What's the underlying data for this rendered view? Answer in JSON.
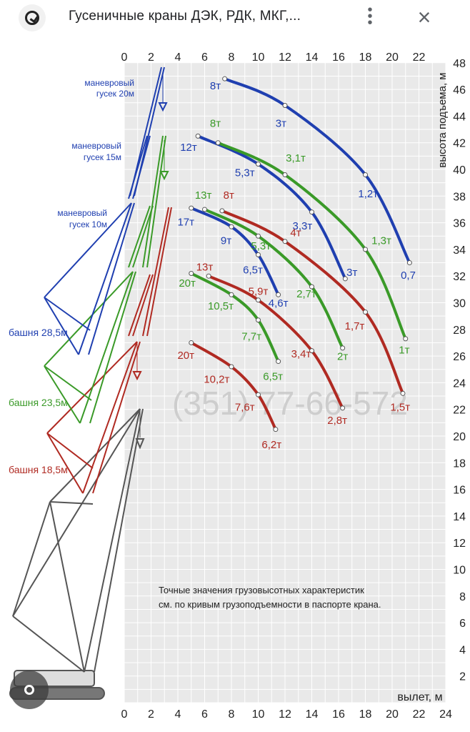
{
  "header": {
    "title": "Гусеничные краны ДЭК, РДК, МКГ,...",
    "logo_icon": "google-lens-logo-icon",
    "more_icon": "more-vert-icon",
    "close_icon": "close-icon"
  },
  "chart_data": {
    "type": "line",
    "title": "",
    "xlabel": "вылет, м",
    "ylabel": "высота подъема, м",
    "xlim": [
      0,
      24
    ],
    "ylim": [
      0,
      48
    ],
    "x_ticks": [
      0,
      2,
      4,
      6,
      8,
      10,
      12,
      14,
      16,
      18,
      20,
      22,
      24
    ],
    "top_x_ticks": [
      0,
      2,
      4,
      6,
      8,
      10,
      12,
      14,
      16,
      18,
      20,
      22
    ],
    "y_ticks": [
      2,
      4,
      6,
      8,
      10,
      12,
      14,
      16,
      18,
      20,
      22,
      24,
      26,
      28,
      30,
      32,
      34,
      36,
      38,
      40,
      42,
      44,
      46,
      48
    ],
    "grid": true,
    "note": "Точные значения грузовысотных характеристик см. по кривым грузоподъемности в паспорте крана.",
    "watermark": "(351) 77-66-572",
    "colors": {
      "blue": "#1f3fb0",
      "green": "#3a9a28",
      "red": "#b02a22",
      "gray": "#555555"
    },
    "crane_labels": [
      {
        "text": "маневровый гусек 20м",
        "color": "blue"
      },
      {
        "text": "маневровый гусек 15м",
        "color": "blue"
      },
      {
        "text": "маневровый гусек 10м",
        "color": "blue"
      },
      {
        "text": "башня 28,5м",
        "color": "blue"
      },
      {
        "text": "башня 23,5м",
        "color": "green"
      },
      {
        "text": "башня 18,5м",
        "color": "red"
      }
    ],
    "series": [
      {
        "name": "башня 28,5м, гусек 20м",
        "color": "blue",
        "points": [
          [
            7.5,
            46.8
          ],
          [
            12,
            44.8
          ],
          [
            18,
            39.6
          ],
          [
            21.3,
            33.0
          ]
        ]
      },
      {
        "name": "башня 28,5м, гусек 15м",
        "color": "blue",
        "points": [
          [
            5.5,
            42.5
          ],
          [
            10,
            40.4
          ],
          [
            14,
            36.8
          ],
          [
            16.5,
            31.8
          ]
        ]
      },
      {
        "name": "башня 28,5м, гусек 10м",
        "color": "blue",
        "points": [
          [
            5,
            37.1
          ],
          [
            8,
            35.7
          ],
          [
            10,
            33.6
          ],
          [
            11.5,
            30.6
          ]
        ]
      },
      {
        "name": "башня 23,5м, гусек 20м",
        "color": "green",
        "points": [
          [
            7,
            42.0
          ],
          [
            12,
            39.6
          ],
          [
            18,
            34.0
          ],
          [
            21,
            27.3
          ]
        ]
      },
      {
        "name": "башня 23,5м, гусек 15м",
        "color": "green",
        "points": [
          [
            6,
            37.0
          ],
          [
            10,
            35.0
          ],
          [
            14,
            31.2
          ],
          [
            16.3,
            26.6
          ]
        ]
      },
      {
        "name": "башня 23,5м, гусек 10м",
        "color": "green",
        "points": [
          [
            5,
            32.2
          ],
          [
            8,
            30.6
          ],
          [
            10,
            28.7
          ],
          [
            11.5,
            25.6
          ]
        ]
      },
      {
        "name": "башня 18,5м, гусек 20м",
        "color": "red",
        "points": [
          [
            7.3,
            36.9
          ],
          [
            12,
            34.6
          ],
          [
            18,
            29.3
          ],
          [
            20.8,
            23.2
          ]
        ]
      },
      {
        "name": "башня 18,5м, гусек 15м",
        "color": "red",
        "points": [
          [
            6.3,
            32.0
          ],
          [
            10,
            30.2
          ],
          [
            14,
            26.4
          ],
          [
            16.3,
            22.1
          ]
        ]
      },
      {
        "name": "башня 18,5м, гусек 10м",
        "color": "red",
        "points": [
          [
            5,
            27.0
          ],
          [
            8,
            25.2
          ],
          [
            10,
            23.1
          ],
          [
            11.3,
            20.5
          ]
        ]
      }
    ],
    "load_labels": [
      {
        "text": "8т",
        "color": "blue",
        "x": 6.8,
        "y": 46.0
      },
      {
        "text": "3т",
        "color": "blue",
        "x": 11.7,
        "y": 43.2
      },
      {
        "text": "1,2т",
        "color": "blue",
        "x": 18.2,
        "y": 37.9
      },
      {
        "text": "0,7",
        "color": "blue",
        "x": 21.2,
        "y": 31.8
      },
      {
        "text": "12т",
        "color": "blue",
        "x": 4.8,
        "y": 41.4
      },
      {
        "text": "5,3т",
        "color": "blue",
        "x": 9.0,
        "y": 39.5
      },
      {
        "text": "3,3т",
        "color": "blue",
        "x": 13.3,
        "y": 35.5
      },
      {
        "text": "3т",
        "color": "blue",
        "x": 17.0,
        "y": 32.0
      },
      {
        "text": "17т",
        "color": "blue",
        "x": 4.6,
        "y": 35.8
      },
      {
        "text": "9т",
        "color": "blue",
        "x": 7.6,
        "y": 34.4
      },
      {
        "text": "6,5т",
        "color": "blue",
        "x": 9.6,
        "y": 32.2
      },
      {
        "text": "4,6т",
        "color": "blue",
        "x": 11.5,
        "y": 29.7
      },
      {
        "text": "8т",
        "color": "green",
        "x": 6.8,
        "y": 43.2
      },
      {
        "text": "3,1т",
        "color": "green",
        "x": 12.8,
        "y": 40.6
      },
      {
        "text": "1,3т",
        "color": "green",
        "x": 19.2,
        "y": 34.4
      },
      {
        "text": "1т",
        "color": "green",
        "x": 20.9,
        "y": 26.2
      },
      {
        "text": "13т",
        "color": "green",
        "x": 5.9,
        "y": 37.8
      },
      {
        "text": "5,3т",
        "color": "green",
        "x": 10.2,
        "y": 34.0
      },
      {
        "text": "2,7т",
        "color": "green",
        "x": 13.6,
        "y": 30.4
      },
      {
        "text": "2т",
        "color": "green",
        "x": 16.3,
        "y": 25.7
      },
      {
        "text": "20т",
        "color": "green",
        "x": 4.7,
        "y": 31.2
      },
      {
        "text": "10,5т",
        "color": "green",
        "x": 7.2,
        "y": 29.5
      },
      {
        "text": "7,7т",
        "color": "green",
        "x": 9.5,
        "y": 27.2
      },
      {
        "text": "6,5т",
        "color": "green",
        "x": 11.1,
        "y": 24.2
      },
      {
        "text": "8т",
        "color": "red",
        "x": 7.8,
        "y": 37.8
      },
      {
        "text": "4т",
        "color": "red",
        "x": 12.8,
        "y": 35.0
      },
      {
        "text": "1,7т",
        "color": "red",
        "x": 17.2,
        "y": 28.0
      },
      {
        "text": "1,5т",
        "color": "red",
        "x": 20.6,
        "y": 21.9
      },
      {
        "text": "13т",
        "color": "red",
        "x": 6.0,
        "y": 32.4
      },
      {
        "text": "5,9т",
        "color": "red",
        "x": 10.0,
        "y": 30.6
      },
      {
        "text": "3,4т",
        "color": "red",
        "x": 13.2,
        "y": 25.9
      },
      {
        "text": "2,8т",
        "color": "red",
        "x": 15.9,
        "y": 20.9
      },
      {
        "text": "20т",
        "color": "red",
        "x": 4.6,
        "y": 25.8
      },
      {
        "text": "10,2т",
        "color": "red",
        "x": 6.9,
        "y": 24.0
      },
      {
        "text": "7,6т",
        "color": "red",
        "x": 9.0,
        "y": 21.9
      },
      {
        "text": "6,2т",
        "color": "red",
        "x": 11.0,
        "y": 19.1
      }
    ]
  }
}
